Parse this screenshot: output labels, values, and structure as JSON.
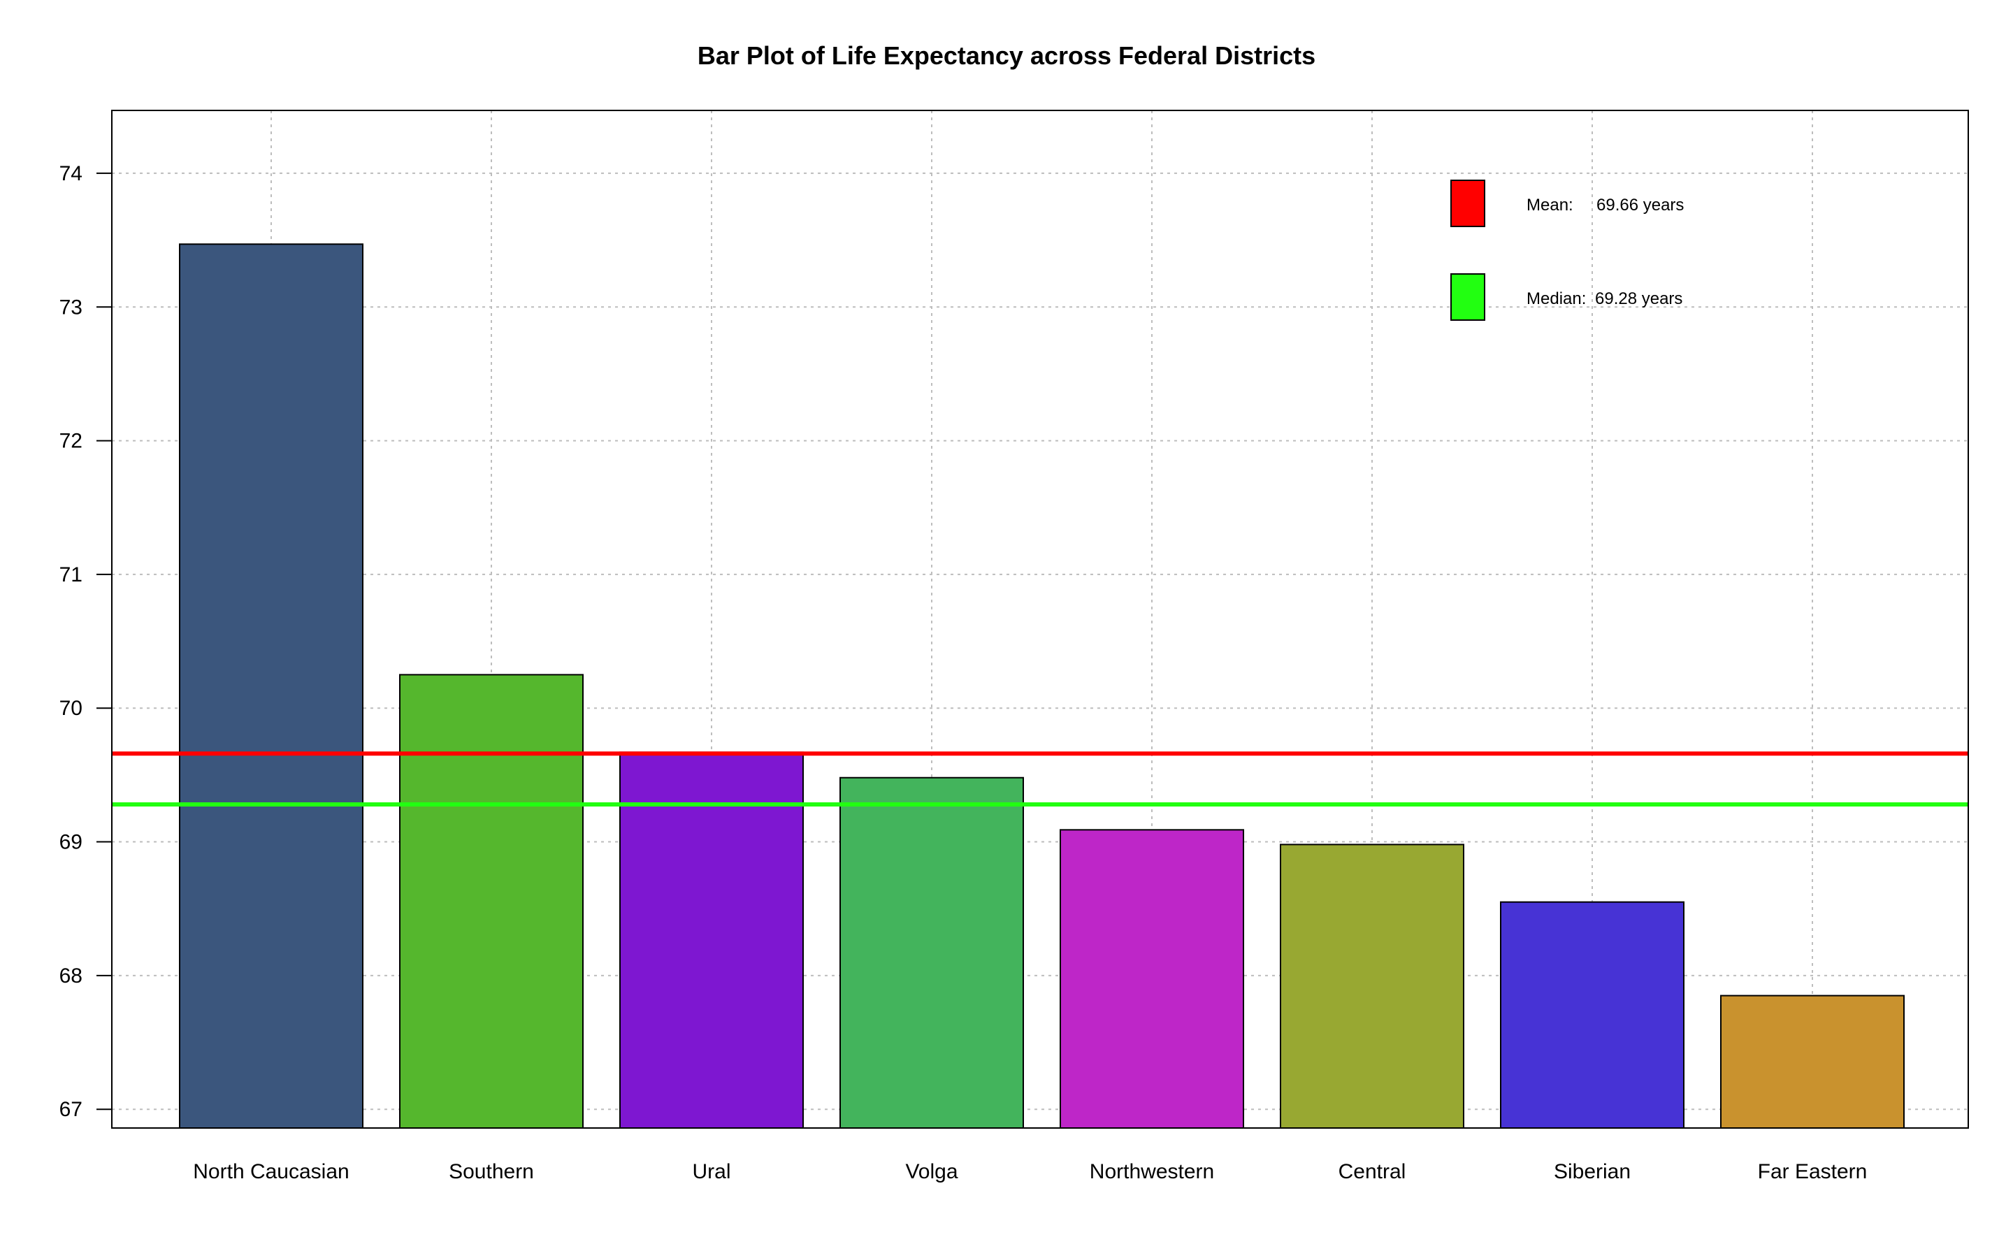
{
  "chart_data": {
    "type": "bar",
    "title": "Bar Plot of Life Expectancy across Federal Districts",
    "xlabel": "",
    "ylabel": "",
    "categories": [
      "North Caucasian",
      "Southern",
      "Ural",
      "Volga",
      "Northwestern",
      "Central",
      "Siberian",
      "Far Eastern"
    ],
    "values": [
      73.47,
      70.25,
      69.67,
      69.48,
      69.09,
      68.98,
      68.55,
      67.85
    ],
    "bar_colors": [
      "#3B567D",
      "#55B72D",
      "#7E17D1",
      "#43B45C",
      "#BE26C8",
      "#98A832",
      "#4733D5",
      "#C9922E"
    ],
    "ylim": [
      66.86,
      74.47
    ],
    "yticks": [
      67,
      68,
      69,
      70,
      71,
      72,
      73,
      74
    ],
    "grid": true,
    "legend_position": "top-right",
    "reference_lines": [
      {
        "label": "Mean:",
        "value_text": "69.66 years",
        "value": 69.66,
        "color": "#FF0000"
      },
      {
        "label": "Median:",
        "value_text": "69.28 years",
        "value": 69.28,
        "color": "#22FF11"
      }
    ]
  }
}
